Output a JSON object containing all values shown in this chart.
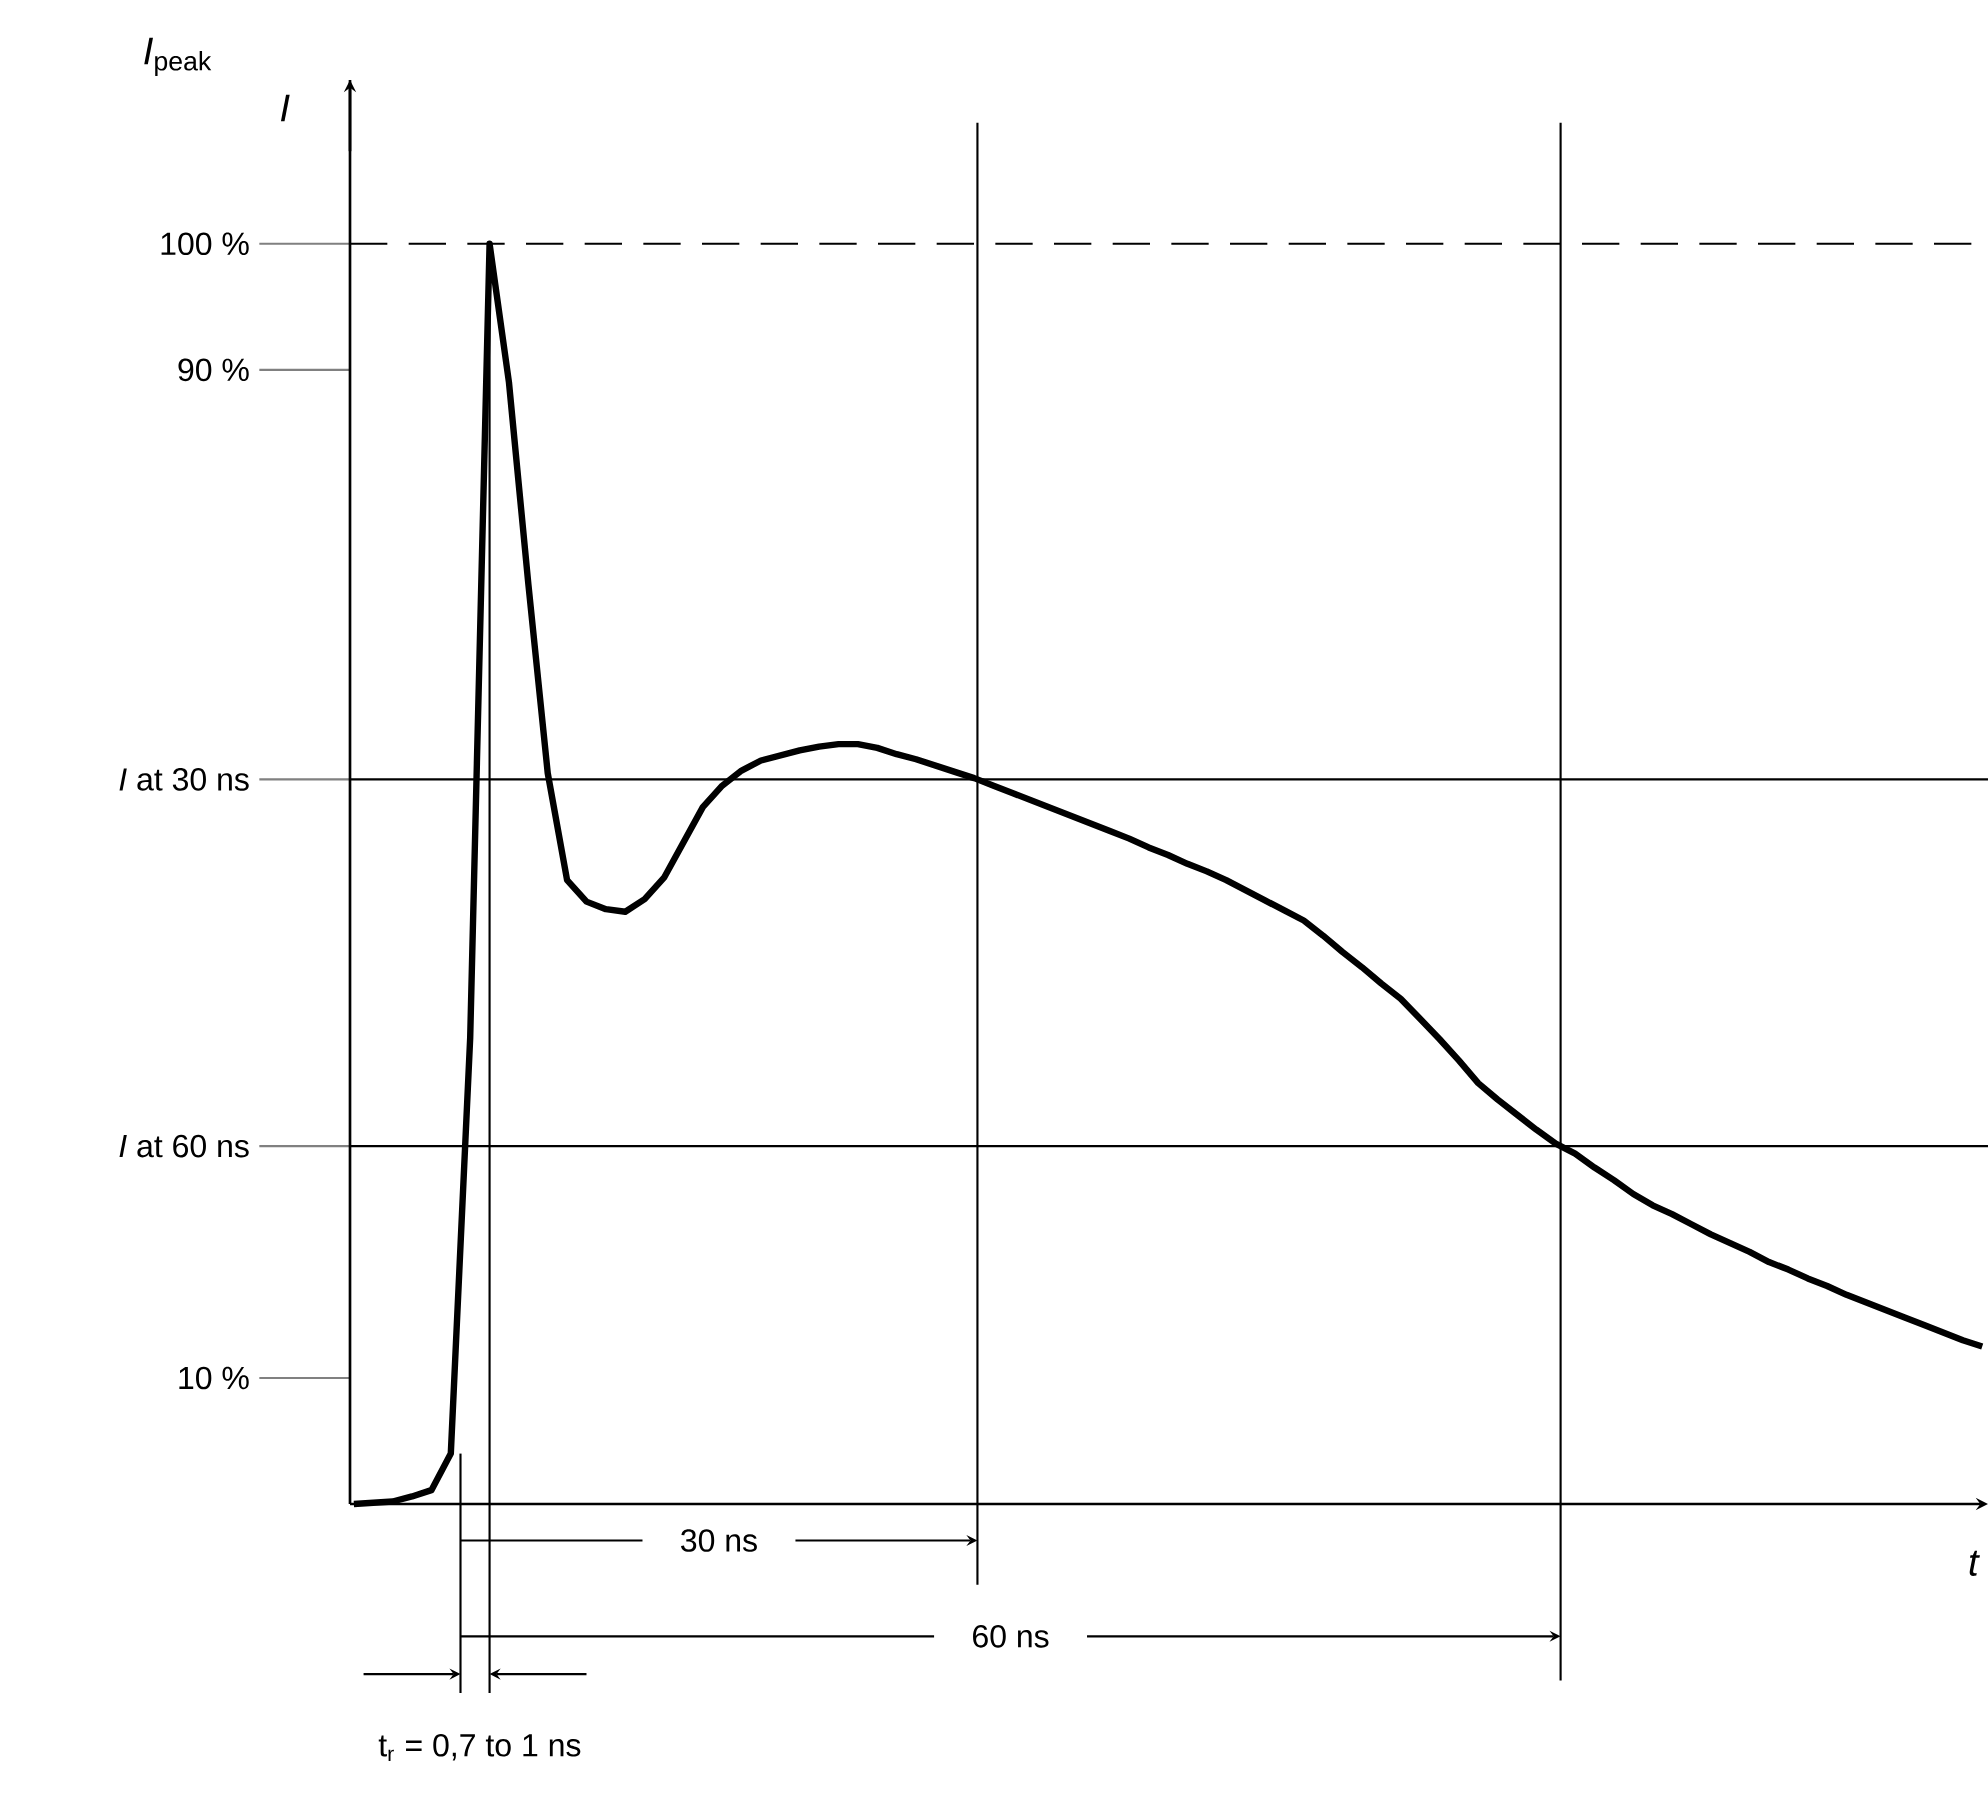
{
  "chart_data": {
    "type": "line",
    "xlabel": "t",
    "ylabel": "I",
    "annotations": [
      "*I*$_{peak}$",
      "30 ns",
      "60 ns",
      "t$_{r}$ = 0,7 to 1 ns"
    ],
    "ylim": [
      0,
      113
    ],
    "yticks": [
      {
        "value": 100,
        "label": "100 %"
      },
      {
        "value": 90,
        "label": "90 %"
      },
      {
        "value": 57.5,
        "label": "*I* at 30 ns"
      },
      {
        "value": 28.4,
        "label": "*I* at 60 ns"
      },
      {
        "value": 10,
        "label": "10 %"
      }
    ],
    "categories": [
      null,
      null,
      null,
      null,
      null,
      null,
      null,
      null,
      null,
      null,
      null,
      null,
      null,
      null,
      null,
      null,
      null,
      null,
      null,
      null,
      null,
      null,
      null,
      null,
      null,
      null,
      null,
      null,
      null,
      null,
      null,
      null,
      null,
      null,
      null,
      null,
      null,
      null,
      null,
      null,
      null,
      null,
      null,
      null,
      null,
      null,
      null,
      null,
      null,
      null,
      null,
      null,
      null,
      null,
      null,
      null,
      null,
      null,
      null,
      null,
      null,
      null,
      null,
      null,
      null,
      null,
      null,
      null,
      null,
      null,
      null,
      null,
      null,
      null,
      null,
      null,
      null,
      null,
      null,
      null,
      null,
      null,
      null,
      null,
      null
    ],
    "series": [
      {
        "color": "#000000",
        "values": [
          0,
          0.1,
          0.2,
          0.6,
          1.1,
          4,
          37,
          100,
          89,
          73,
          58,
          49.5,
          47.8,
          47.2,
          47,
          48,
          49.7,
          52.5,
          55.3,
          57,
          58.2,
          59,
          59.4,
          59.8,
          60.1,
          60.3,
          60.3,
          60,
          59.5,
          59.1,
          58.6,
          58.1,
          57.6,
          57,
          56.4,
          55.8,
          55.2,
          54.6,
          54,
          53.4,
          52.8,
          52.1,
          51.5,
          50.8,
          50.2,
          49.5,
          48.7,
          47.9,
          47.1,
          46.3,
          45.1,
          43.8,
          42.6,
          41.3,
          40.1,
          38.5,
          36.9,
          35.2,
          33.4,
          32.1,
          30.9,
          29.7,
          28.6,
          27.8,
          26.7,
          25.7,
          24.6,
          23.7,
          23,
          22.2,
          21.4,
          20.7,
          20,
          19.2,
          18.6,
          17.9,
          17.3,
          16.6,
          16,
          15.4,
          14.8,
          14.2,
          13.6,
          13,
          12.5
        ]
      }
    ],
    "ref_lines": [
      {
        "axis": "y",
        "value": 100,
        "line_style": "dashed"
      },
      {
        "axis": "y",
        "value": 57.5
      },
      {
        "axis": "y",
        "value": 28.4
      }
    ],
    "marker": "none",
    "line_style": "solid"
  }
}
